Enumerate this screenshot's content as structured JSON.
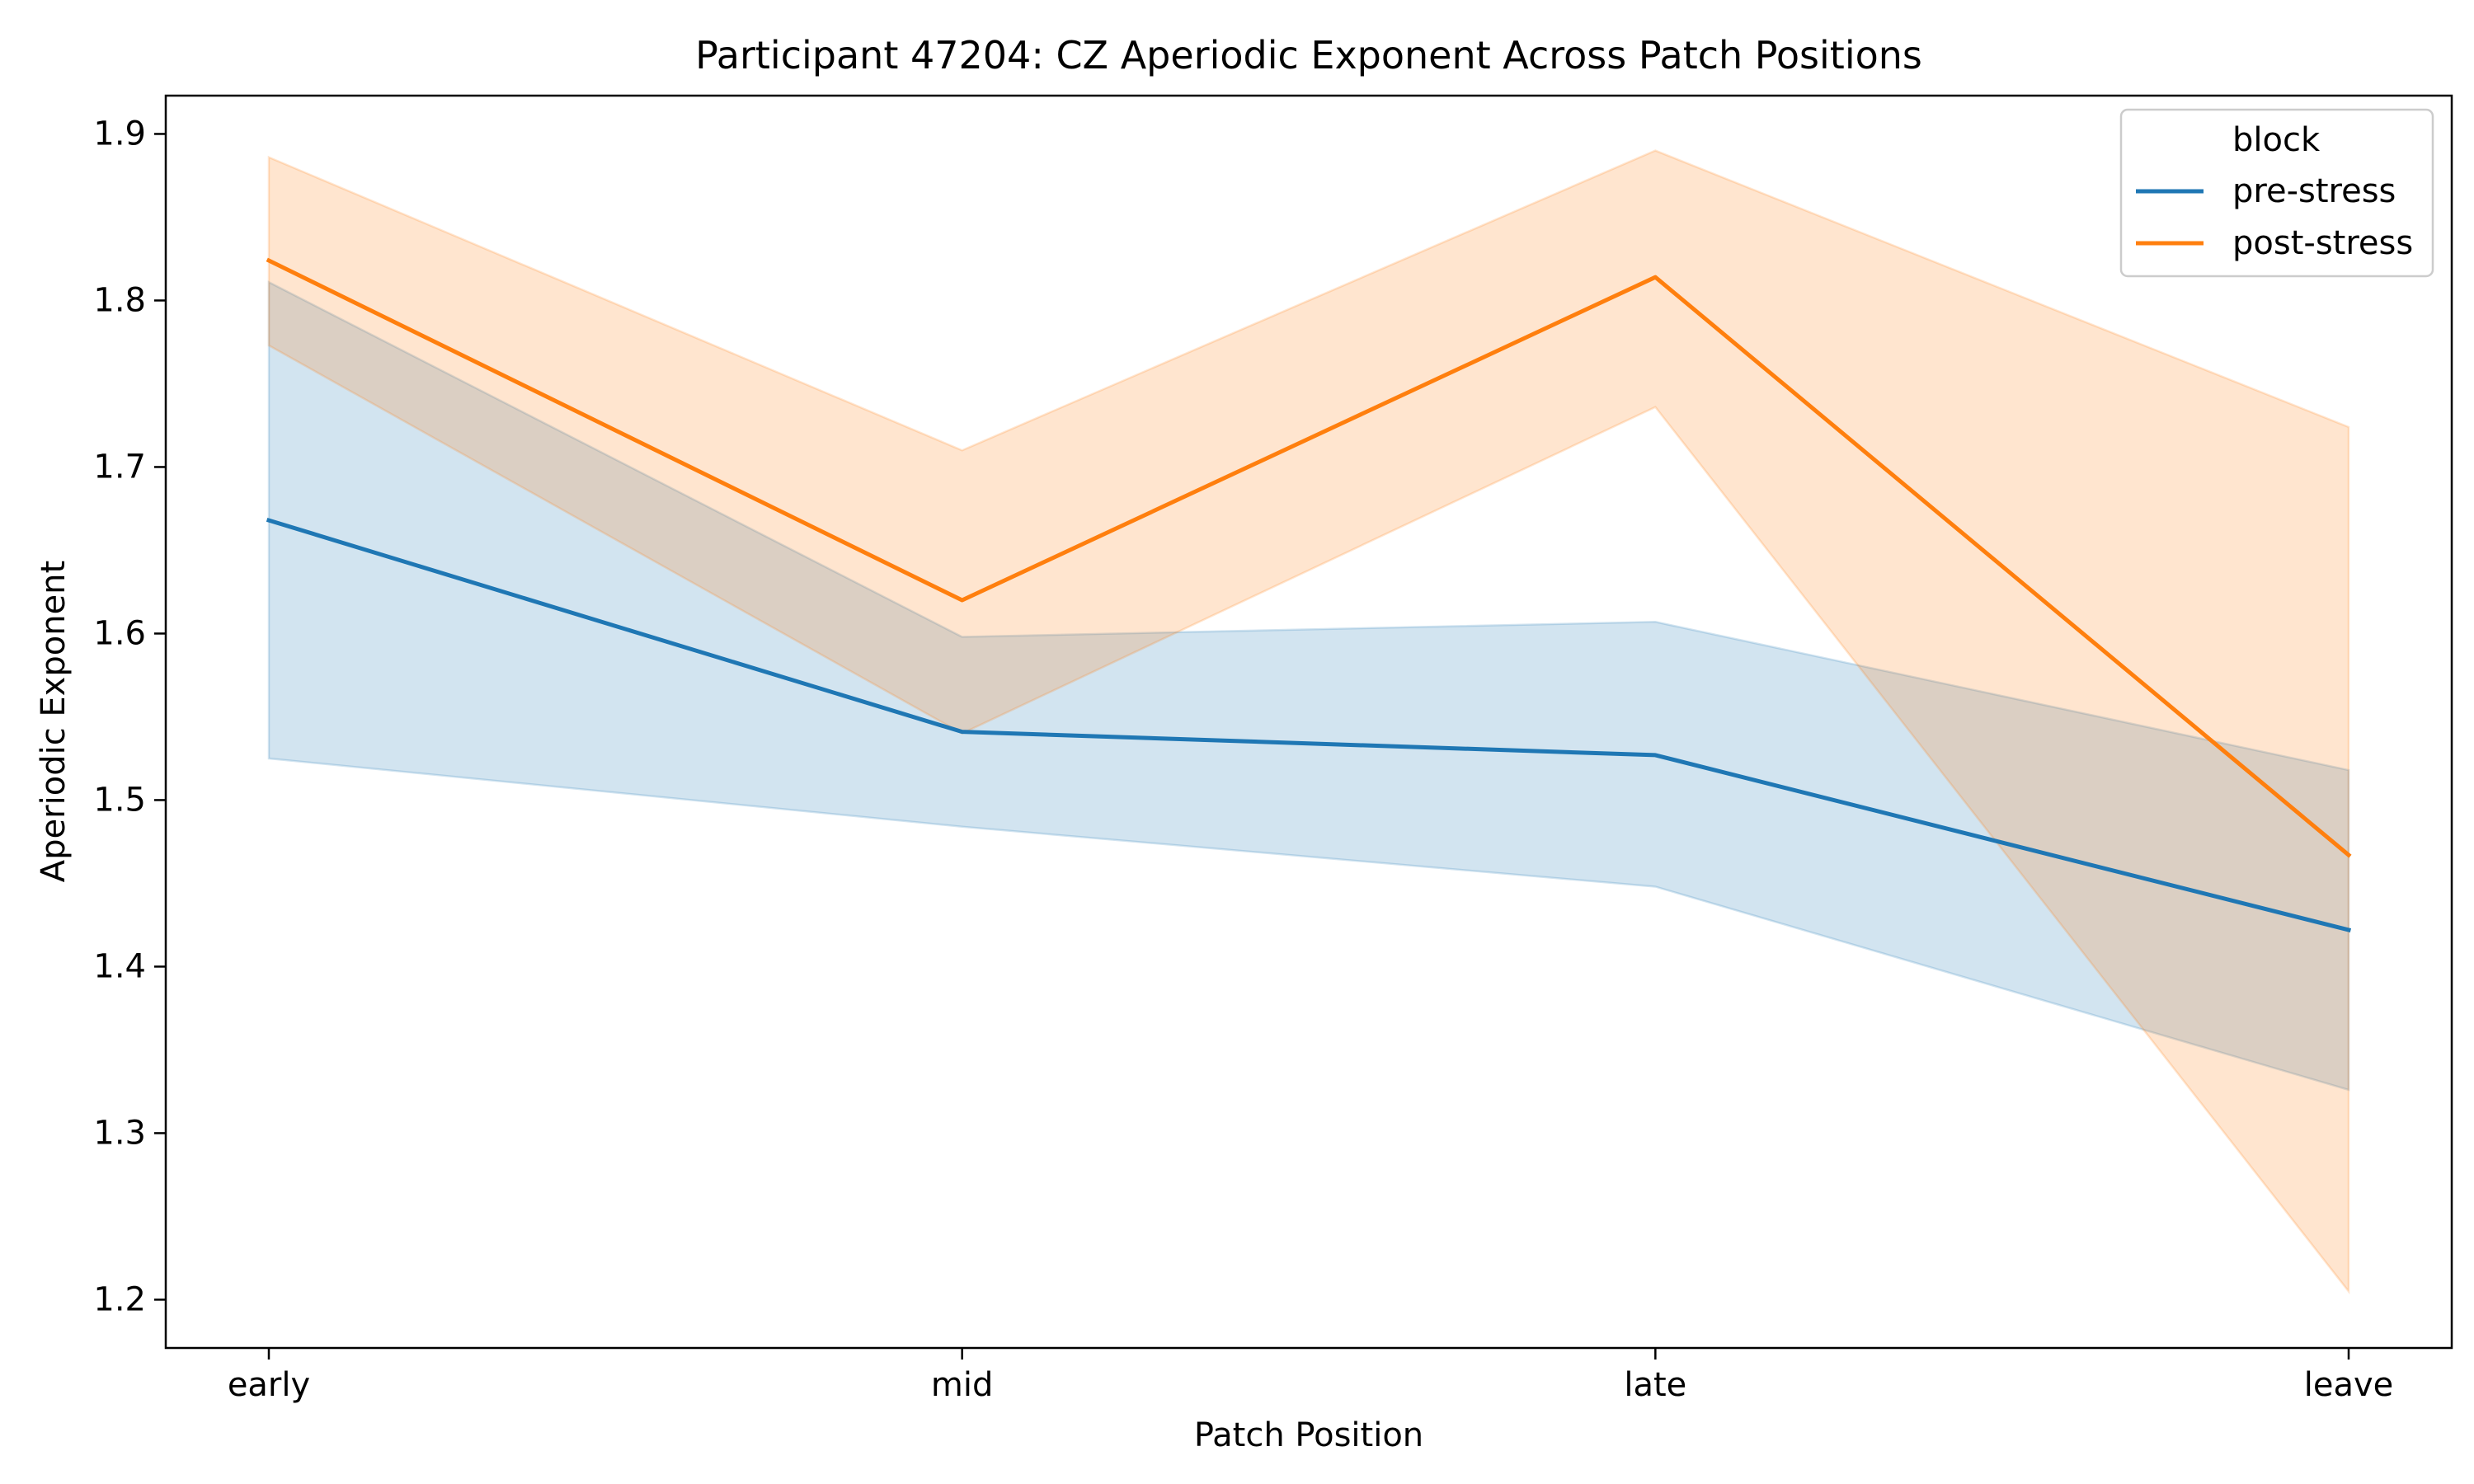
{
  "chart_data": {
    "type": "line",
    "title": "Participant 47204: CZ Aperiodic Exponent Across Patch Positions",
    "xlabel": "Patch Position",
    "ylabel": "Aperiodic Exponent",
    "categories": [
      "early",
      "mid",
      "late",
      "leave"
    ],
    "ylim": [
      1.171,
      1.923
    ],
    "yticks": [
      1.2,
      1.3,
      1.4,
      1.5,
      1.6,
      1.7,
      1.8,
      1.9
    ],
    "ytick_labels": [
      "1.2",
      "1.3",
      "1.4",
      "1.5",
      "1.6",
      "1.7",
      "1.8",
      "1.9"
    ],
    "grid": false,
    "legend": {
      "title": "block",
      "placement": "top-right"
    },
    "series": [
      {
        "name": "pre-stress",
        "color": "#1f77b4",
        "values": [
          1.668,
          1.541,
          1.527,
          1.422
        ],
        "ci_lower": [
          1.525,
          1.484,
          1.448,
          1.326
        ],
        "ci_upper": [
          1.811,
          1.598,
          1.607,
          1.518
        ]
      },
      {
        "name": "post-stress",
        "color": "#ff7f0e",
        "values": [
          1.824,
          1.62,
          1.814,
          1.467
        ],
        "ci_lower": [
          1.773,
          1.54,
          1.736,
          1.205
        ],
        "ci_upper": [
          1.886,
          1.71,
          1.89,
          1.724
        ]
      }
    ]
  }
}
